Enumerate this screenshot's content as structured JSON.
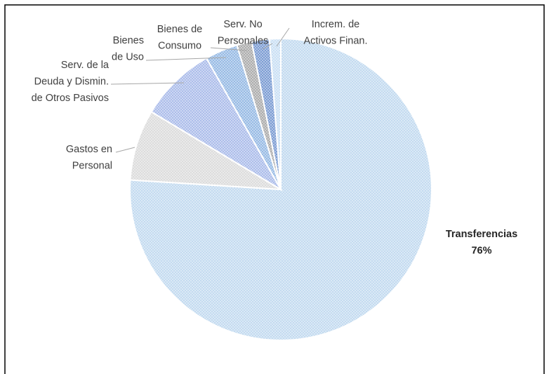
{
  "chart_data": {
    "type": "pie",
    "categories": [
      "Transferencias",
      "Gastos en\nPersonal",
      "Serv. de la\nDeuda y Dismin.\nde Otros Pasivos",
      "Bienes\nde Uso",
      "Bienes de\nConsumo",
      "Serv. No\nPersonales",
      "Increm. de\nActivos Finan."
    ],
    "values": [
      76,
      7.6,
      8.2,
      3.5,
      1.6,
      1.9,
      1.2
    ],
    "value_labels": [
      "76%",
      null,
      null,
      null,
      null,
      null,
      null
    ],
    "colors": [
      "#bdd7ee",
      "#d9d9d9",
      "#a4b6e8",
      "#8db4e2",
      "#a5a5a5",
      "#6f93cf",
      "#c5ddf3"
    ]
  }
}
